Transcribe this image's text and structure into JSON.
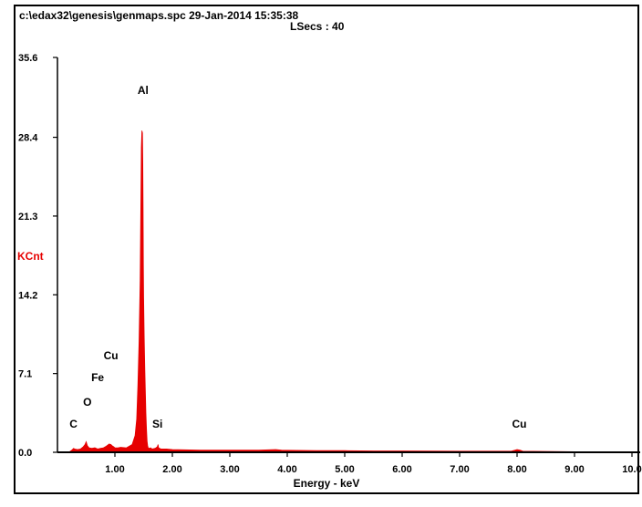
{
  "header": {
    "file_info": "c:\\edax32\\genesis\\genmaps.spc  29-Jan-2014 15:35:38",
    "lsecs": "LSecs :  40"
  },
  "chart_data": {
    "type": "area",
    "xlabel": "Energy - keV",
    "ylabel": "KCnt",
    "xlim": [
      0.0,
      10.0
    ],
    "ylim": [
      0.0,
      35.6
    ],
    "x_ticks": [
      "1.00",
      "2.00",
      "3.00",
      "4.00",
      "5.00",
      "6.00",
      "7.00",
      "8.00",
      "9.00",
      "10.0"
    ],
    "y_ticks": [
      "0.0",
      "7.1",
      "14.2",
      "21.3",
      "28.4",
      "35.6"
    ],
    "grid": false,
    "color": "#e60000",
    "series": [
      {
        "x": [
          0.0,
          0.2,
          0.25,
          0.28,
          0.3,
          0.35,
          0.4,
          0.45,
          0.48,
          0.5,
          0.52,
          0.55,
          0.6,
          0.65,
          0.7,
          0.75,
          0.8,
          0.85,
          0.9,
          0.93,
          0.95,
          0.98,
          1.0,
          1.05,
          1.1,
          1.2,
          1.3,
          1.35,
          1.38,
          1.4,
          1.42,
          1.44,
          1.45,
          1.46,
          1.47,
          1.48,
          1.485,
          1.49,
          1.495,
          1.5,
          1.51,
          1.52,
          1.53,
          1.54,
          1.55,
          1.56,
          1.57,
          1.58,
          1.6,
          1.62,
          1.65,
          1.7,
          1.74,
          1.75,
          1.76,
          1.8,
          1.9,
          2.0,
          2.5,
          3.0,
          3.5,
          3.8,
          3.9,
          4.0,
          4.5,
          5.0,
          5.5,
          6.0,
          7.0,
          7.9,
          8.0,
          8.05,
          8.1,
          9.0,
          10.0
        ],
        "y": [
          0.0,
          0.0,
          0.2,
          0.35,
          0.3,
          0.25,
          0.3,
          0.5,
          0.7,
          0.95,
          0.6,
          0.4,
          0.35,
          0.4,
          0.3,
          0.35,
          0.4,
          0.55,
          0.75,
          0.7,
          0.6,
          0.5,
          0.4,
          0.4,
          0.45,
          0.4,
          0.7,
          1.5,
          3.0,
          6.0,
          10.0,
          15.5,
          21.0,
          27.5,
          29.0,
          28.8,
          26.0,
          22.0,
          17.0,
          14.0,
          10.5,
          7.5,
          5.5,
          3.5,
          2.0,
          1.0,
          0.6,
          0.4,
          0.35,
          0.4,
          0.3,
          0.35,
          0.5,
          0.7,
          0.4,
          0.3,
          0.3,
          0.25,
          0.2,
          0.2,
          0.2,
          0.25,
          0.2,
          0.18,
          0.15,
          0.15,
          0.12,
          0.12,
          0.1,
          0.1,
          0.25,
          0.2,
          0.1,
          0.05,
          0.0
        ]
      }
    ],
    "annotations": [
      {
        "label": "Al",
        "x": 1.49,
        "y": 32.3
      },
      {
        "label": "C",
        "x": 0.28,
        "y": 2.2
      },
      {
        "label": "O",
        "x": 0.52,
        "y": 4.2
      },
      {
        "label": "Fe",
        "x": 0.7,
        "y": 6.4
      },
      {
        "label": "Cu",
        "x": 0.93,
        "y": 8.4
      },
      {
        "label": "Si",
        "x": 1.74,
        "y": 2.2
      },
      {
        "label": "Cu",
        "x": 8.04,
        "y": 2.2
      }
    ]
  }
}
